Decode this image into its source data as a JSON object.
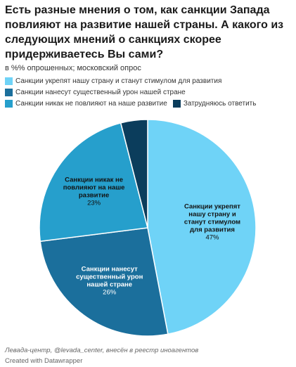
{
  "header": {
    "title": "Есть разные мнения о том, как санкции Запада повлияют на развитие нашей страны. А какого из следующих мнений о санкциях скорее придерживаетесь Вы сами?",
    "subtitle": "в %% опрошенных; московский опрос"
  },
  "footer": {
    "source": "Левада-центр, @levada_center, внесён в реестр иноагентов",
    "credit": "Created with Datawrapper"
  },
  "colors": {
    "strengthen": "#6fd3f7",
    "damage": "#1b6f9c",
    "no_effect": "#269fcc",
    "undecided": "#0b3d5c"
  },
  "chart_data": {
    "type": "pie",
    "title": "Есть разные мнения о том, как санкции Запада повлияют на развитие нашей страны. А какого из следующих мнений о санкциях скорее придерживаетесь Вы сами?",
    "subtitle": "в %% опрошенных; московский опрос",
    "unit": "%",
    "legend_position": "top",
    "start_angle_deg": 0,
    "direction": "clockwise",
    "slices": [
      {
        "key": "strengthen",
        "legend": "Санкции укрепят нашу страну и станут стимулом для развития",
        "label_lines": [
          "Санкции укрепят",
          "нашу страну и",
          "станут стимулом",
          "для развития"
        ],
        "value_text": "47%",
        "value": 47,
        "color": "#6fd3f7",
        "label_style": "dark"
      },
      {
        "key": "damage",
        "legend": "Санкции нанесут существенный урон нашей стране",
        "label_lines": [
          "Санкции нанесут",
          "существенный урон",
          "нашей стране"
        ],
        "value_text": "26%",
        "value": 26,
        "color": "#1b6f9c",
        "label_style": "light"
      },
      {
        "key": "no_effect",
        "legend": "Санкции никак не повлияют на наше развитие",
        "label_lines": [
          "Санкции никак не",
          "повлияют на наше",
          "развитие"
        ],
        "value_text": "23%",
        "value": 23,
        "color": "#269fcc",
        "label_style": "dark"
      },
      {
        "key": "undecided",
        "legend": "Затрудняюсь ответить",
        "label_lines": [],
        "value_text": "",
        "value": 4,
        "color": "#0b3d5c",
        "label_style": "light"
      }
    ]
  }
}
